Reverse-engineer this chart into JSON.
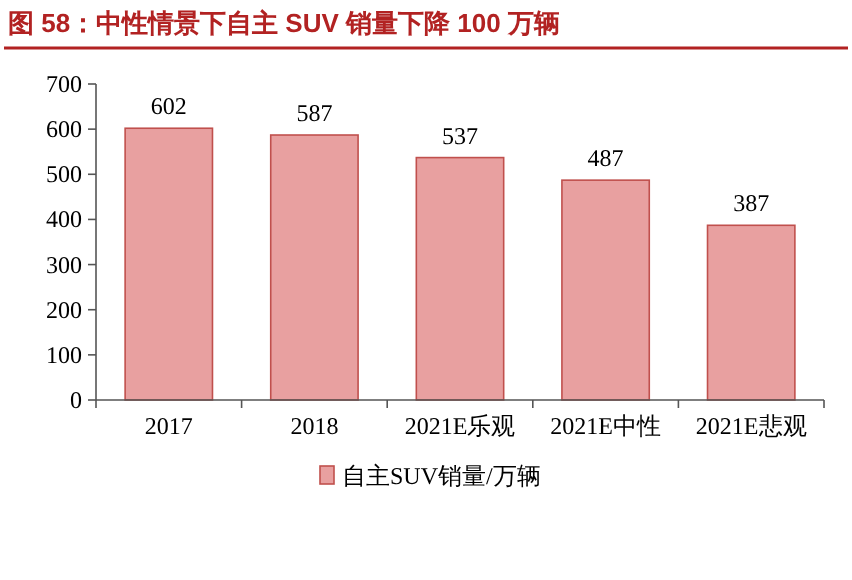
{
  "chart_data": {
    "type": "bar",
    "title": "图 58：中性情景下自主 SUV 销量下降 100 万辆",
    "categories": [
      "2017",
      "2018",
      "2021E乐观",
      "2021E中性",
      "2021E悲观"
    ],
    "series": [
      {
        "name": "自主SUV销量/万辆",
        "color": "#e8a0a0",
        "values": [
          602,
          587,
          537,
          487,
          387
        ]
      }
    ],
    "ylim": [
      0,
      700
    ],
    "yticks": [
      0,
      100,
      200,
      300,
      400,
      500,
      600,
      700
    ],
    "data_labels": true,
    "legend": "bottom",
    "grid": false
  }
}
